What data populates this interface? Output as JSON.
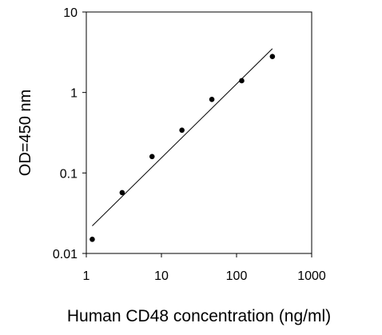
{
  "chart_data": {
    "type": "scatter",
    "title": "",
    "xlabel": "Human CD48 concentration (ng/ml)",
    "ylabel": "OD=450 nm",
    "x_scale": "log",
    "y_scale": "log",
    "xlim": [
      1,
      1000
    ],
    "ylim": [
      0.01,
      10
    ],
    "x_ticks": [
      1,
      10,
      100,
      1000
    ],
    "y_ticks": [
      0.01,
      0.1,
      1,
      10
    ],
    "x_tick_labels": [
      "1",
      "10",
      "100",
      "1000"
    ],
    "y_tick_labels": [
      "0.01",
      "0.1",
      "1",
      "10"
    ],
    "grid": false,
    "legend": "none",
    "series": [
      {
        "x": [
          1.2,
          3.0,
          7.5,
          18.75,
          46.9,
          117.2,
          300
        ],
        "y": [
          0.015,
          0.057,
          0.16,
          0.34,
          0.82,
          1.4,
          2.8
        ]
      }
    ],
    "fit_line": {
      "x": [
        1.2,
        300
      ],
      "y": [
        0.022,
        3.5
      ]
    },
    "colors": {
      "points": "#000000",
      "line": "#000000"
    }
  }
}
